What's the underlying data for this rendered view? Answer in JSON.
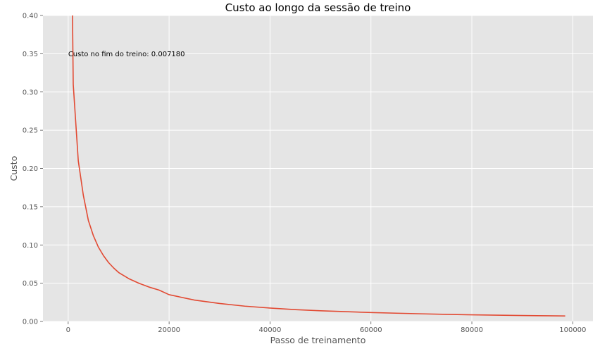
{
  "chart_data": {
    "type": "line",
    "title": "Custo ao longo da sessão de treino",
    "xlabel": "Passo de treinamento",
    "ylabel": "Custo",
    "xlim": [
      -5000,
      104000
    ],
    "ylim": [
      0,
      0.4
    ],
    "xticks": [
      0,
      20000,
      40000,
      60000,
      80000,
      100000
    ],
    "xtick_labels": [
      "0",
      "20000",
      "40000",
      "60000",
      "80000",
      "100000"
    ],
    "yticks": [
      0.0,
      0.05,
      0.1,
      0.15,
      0.2,
      0.25,
      0.3,
      0.35,
      0.4
    ],
    "ytick_labels": [
      "0.00",
      "0.05",
      "0.10",
      "0.15",
      "0.20",
      "0.25",
      "0.30",
      "0.35",
      "0.40"
    ],
    "grid": true,
    "style": "ggplot",
    "colors": {
      "line": "#e24a33",
      "plot_background": "#e5e5e5",
      "grid": "#ffffff"
    },
    "annotation": {
      "text": "Custo no fim do treino: 0.007180",
      "x": 0,
      "y": 0.35
    },
    "series": [
      {
        "x": [
          500,
          1000,
          2000,
          3000,
          4000,
          5000,
          6000,
          7000,
          8000,
          9000,
          10000,
          12000,
          14000,
          16000,
          18000,
          20000,
          25000,
          30000,
          35000,
          40000,
          45000,
          50000,
          55000,
          60000,
          65000,
          70000,
          75000,
          80000,
          85000,
          90000,
          95000,
          98500
        ],
        "y": [
          0.62,
          0.31,
          0.21,
          0.165,
          0.132,
          0.112,
          0.097,
          0.086,
          0.077,
          0.07,
          0.064,
          0.056,
          0.05,
          0.045,
          0.041,
          0.035,
          0.028,
          0.0235,
          0.02,
          0.0175,
          0.0155,
          0.014,
          0.0128,
          0.0117,
          0.0108,
          0.01,
          0.0093,
          0.0087,
          0.0082,
          0.0078,
          0.0074,
          0.00718
        ]
      }
    ]
  }
}
